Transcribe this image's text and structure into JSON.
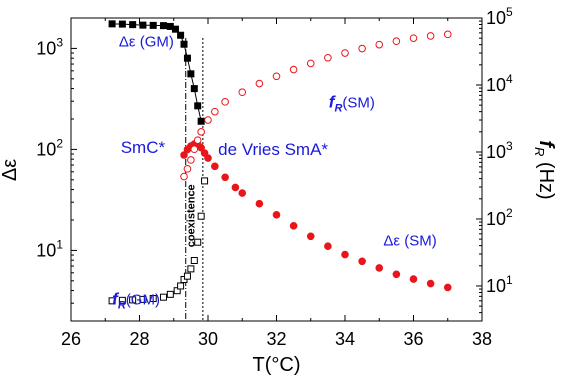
{
  "chart_data": {
    "type": "scatter",
    "x_axis": {
      "label": "T(°C)",
      "range": [
        26,
        38
      ],
      "ticks": [
        26,
        28,
        30,
        32,
        34,
        36,
        38
      ]
    },
    "y_axis_left": {
      "label": "Δε",
      "scale": "log",
      "range": [
        2,
        2000
      ],
      "ticks": [
        {
          "value": 10,
          "label": "10^1"
        },
        {
          "value": 100,
          "label": "10^2"
        },
        {
          "value": 1000,
          "label": "10^3"
        }
      ]
    },
    "y_axis_right": {
      "label": "f_R (Hz)",
      "scale": "log",
      "range": [
        3,
        100000
      ],
      "ticks": [
        {
          "value": 10,
          "label": "10^1"
        },
        {
          "value": 100,
          "label": "10^2"
        },
        {
          "value": 1000,
          "label": "10^3"
        },
        {
          "value": 10000,
          "label": "10^4"
        },
        {
          "value": 100000,
          "label": "10^5"
        }
      ]
    },
    "vertical_lines": [
      29.35,
      29.85
    ],
    "series": [
      {
        "name": "Δε (GM)",
        "marker": "filled-square",
        "color": "#000000",
        "axis": "left",
        "x": [
          27.2,
          27.5,
          27.8,
          28.1,
          28.4,
          28.7,
          28.9,
          29.05,
          29.2,
          29.3,
          29.4,
          29.5,
          29.6,
          29.7,
          29.8
        ],
        "y": [
          1750,
          1740,
          1720,
          1700,
          1690,
          1680,
          1650,
          1550,
          1350,
          1100,
          800,
          560,
          400,
          270,
          190
        ]
      },
      {
        "name": "f_R (GM)",
        "marker": "open-square",
        "color": "#000000",
        "axis": "right",
        "x": [
          27.2,
          27.5,
          27.8,
          28.1,
          28.4,
          28.7,
          28.9,
          29.1,
          29.2,
          29.3,
          29.4,
          29.5,
          29.6,
          29.7,
          29.8,
          29.9
        ],
        "y": [
          6.0,
          6.1,
          6.2,
          6.3,
          6.5,
          6.8,
          7.5,
          8.5,
          10,
          12.5,
          14,
          18,
          24,
          45,
          110,
          370
        ]
      },
      {
        "name": "Δε (SM)",
        "marker": "filled-circle",
        "color": "#e8161b",
        "axis": "left",
        "x": [
          29.3,
          29.4,
          29.5,
          29.6,
          29.7,
          29.8,
          29.9,
          30.0,
          30.2,
          30.5,
          30.8,
          31.0,
          31.5,
          32.0,
          32.5,
          33.0,
          33.5,
          34.0,
          34.5,
          35.0,
          35.5,
          36.0,
          36.5,
          37.0
        ],
        "y": [
          88,
          100,
          108,
          113,
          112,
          104,
          92,
          82,
          68,
          53,
          42,
          37,
          29,
          22.5,
          17.5,
          13.8,
          11.0,
          9.1,
          7.8,
          6.7,
          5.8,
          5.2,
          4.7,
          4.3
        ]
      },
      {
        "name": "f_R (SM)",
        "marker": "open-circle",
        "color": "#e8161b",
        "axis": "right",
        "x": [
          29.3,
          29.4,
          29.5,
          29.6,
          29.7,
          29.8,
          30.0,
          30.2,
          30.5,
          31.0,
          31.5,
          32.0,
          32.5,
          33.0,
          33.5,
          34.0,
          34.5,
          35.0,
          35.5,
          36.0,
          36.5,
          37.0
        ],
        "y": [
          430,
          560,
          760,
          1100,
          1500,
          2000,
          3000,
          4000,
          5600,
          7800,
          10500,
          13500,
          17000,
          21000,
          25500,
          30000,
          35000,
          40000,
          45000,
          50000,
          54000,
          57000
        ]
      }
    ],
    "annotations": [
      {
        "text": "Δε (GM)",
        "x": 28.2,
        "y_left": 1050
      },
      {
        "text": "f_R(SM)",
        "x": 34.2,
        "y_left": 260
      },
      {
        "text": "SmC*",
        "x": 28.1,
        "y_left": 92
      },
      {
        "text": "de Vries SmA*",
        "x": 31.9,
        "y_left": 88
      },
      {
        "text": "Δε (SM)",
        "x": 35.9,
        "y_left": 11.2
      },
      {
        "text": "f_R(GM)",
        "x": 27.9,
        "y_left": 2.9
      },
      {
        "text": "coexistence",
        "x": 29.6,
        "y_left": 22,
        "rotated": true
      }
    ],
    "grid": false,
    "legend": "none"
  }
}
